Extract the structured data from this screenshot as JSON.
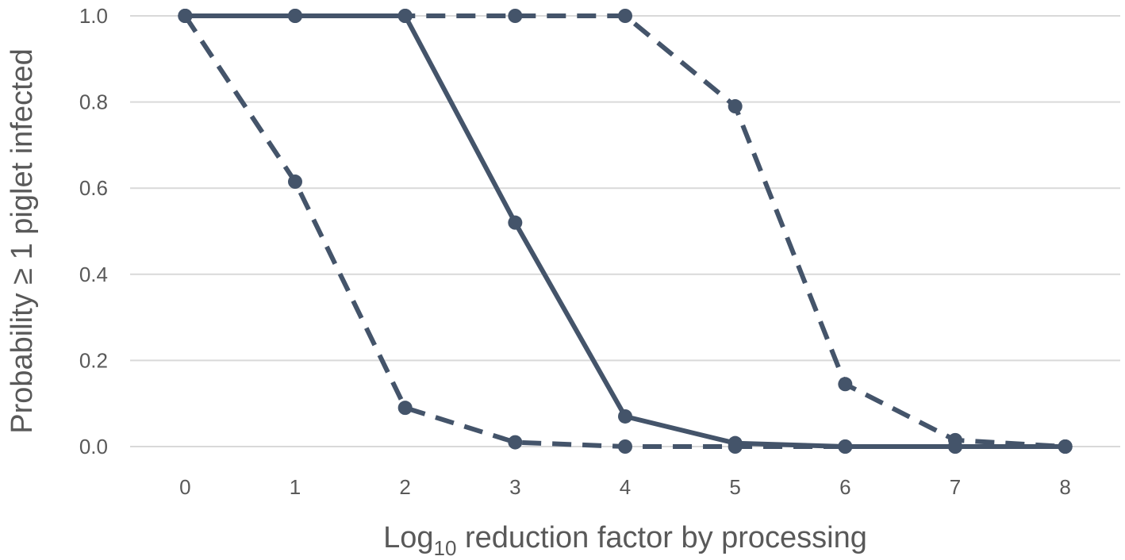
{
  "chart_data": {
    "type": "line",
    "title": "",
    "xlabel": {
      "prefix": "Log",
      "subscript": "10",
      "rest": " reduction factor by processing"
    },
    "ylabel": "Probability ≥ 1 piglet infected",
    "x": [
      0,
      1,
      2,
      3,
      4,
      5,
      6,
      7,
      8
    ],
    "x_tick_labels": [
      "0",
      "1",
      "2",
      "3",
      "4",
      "5",
      "6",
      "7",
      "8"
    ],
    "y_tick_labels": [
      "0.0",
      "0.2",
      "0.4",
      "0.6",
      "0.8",
      "1.0"
    ],
    "y_ticks": [
      0.0,
      0.2,
      0.4,
      0.6,
      0.8,
      1.0
    ],
    "xlim": [
      -0.5,
      8.5
    ],
    "ylim": [
      0,
      1.0
    ],
    "grid": "horizontal",
    "legend": "none",
    "color": "#44546a",
    "series": [
      {
        "style": "dashed",
        "values": [
          1.0,
          0.615,
          0.09,
          0.01,
          0.0,
          0.0,
          0.0,
          0.0,
          0.0
        ]
      },
      {
        "style": "solid",
        "values": [
          1.0,
          1.0,
          1.0,
          0.52,
          0.07,
          0.008,
          0.0,
          0.0,
          0.0
        ]
      },
      {
        "style": "dashed",
        "values": [
          1.0,
          1.0,
          1.0,
          1.0,
          1.0,
          0.79,
          0.145,
          0.015,
          0.0
        ]
      }
    ]
  }
}
